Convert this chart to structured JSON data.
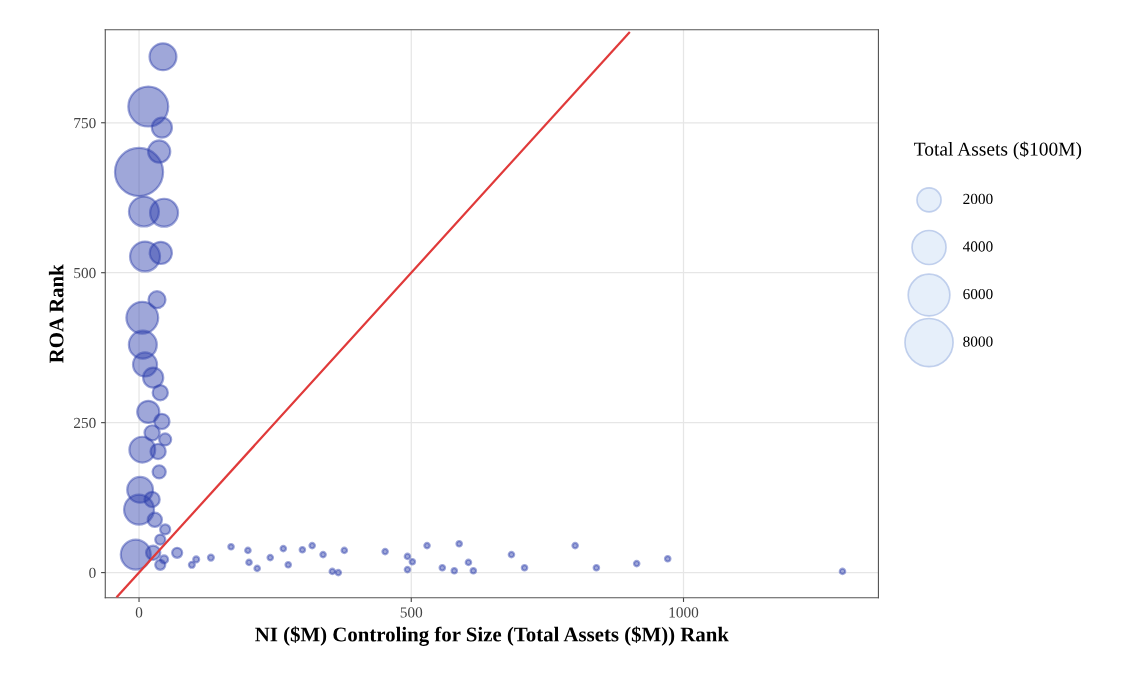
{
  "chart_data": {
    "type": "bubble",
    "xlabel": "NI ($M) Controling for Size (Total Assets ($M)) Rank",
    "ylabel": "ROA Rank",
    "legend_title": "Total Assets ($100M)",
    "grid": true,
    "xlim": [
      -62,
      1358
    ],
    "ylim": [
      -42,
      905
    ],
    "xticks": [
      0,
      500,
      1000
    ],
    "yticks": [
      0,
      250,
      500,
      750
    ],
    "size_legend": [
      2000,
      4000,
      6000,
      8000
    ],
    "series": [
      {
        "color": "#2a3caa",
        "x": [
          44,
          17,
          42,
          37,
          0,
          9,
          46,
          11,
          40,
          33,
          6,
          7,
          11,
          26,
          39,
          17,
          42,
          24,
          48,
          6,
          35,
          37,
          2,
          24,
          0,
          29,
          48,
          39,
          -6,
          26,
          39,
          70,
          46,
          97,
          105,
          132,
          169,
          200,
          202,
          217,
          241,
          265,
          274,
          300,
          318,
          338,
          355,
          366,
          377,
          452,
          493,
          502,
          493,
          529,
          557,
          579,
          588,
          605,
          614,
          684,
          708,
          801,
          840,
          914,
          971,
          1292
        ],
        "values": [
          860,
          777,
          742,
          702,
          668,
          602,
          600,
          527,
          533,
          455,
          425,
          380,
          347,
          325,
          300,
          268,
          252,
          233,
          222,
          205,
          202,
          168,
          138,
          122,
          105,
          88,
          72,
          55,
          30,
          33,
          13,
          33,
          22,
          13,
          22,
          25,
          43,
          37,
          17,
          7,
          25,
          40,
          13,
          38,
          45,
          30,
          2,
          0,
          37,
          35,
          27,
          18,
          5,
          45,
          8,
          3,
          48,
          17,
          3,
          30,
          8,
          45,
          8,
          15,
          23,
          2
        ],
        "sizes": [
          2500,
          5500,
          1400,
          1700,
          8000,
          3100,
          2700,
          3100,
          1700,
          1000,
          3500,
          2700,
          2000,
          1400,
          800,
          1700,
          800,
          800,
          500,
          2300,
          800,
          600,
          2300,
          800,
          3100,
          700,
          350,
          350,
          3100,
          700,
          350,
          350,
          220,
          120,
          120,
          120,
          100,
          100,
          100,
          100,
          100,
          100,
          100,
          100,
          100,
          100,
          100,
          100,
          100,
          100,
          100,
          100,
          100,
          100,
          100,
          100,
          100,
          100,
          100,
          100,
          100,
          100,
          100,
          100,
          100,
          100
        ]
      },
      {
        "type": "line",
        "color": "#e03a3a",
        "x": [
          -40,
          900
        ],
        "values": [
          -40,
          900
        ]
      }
    ]
  }
}
